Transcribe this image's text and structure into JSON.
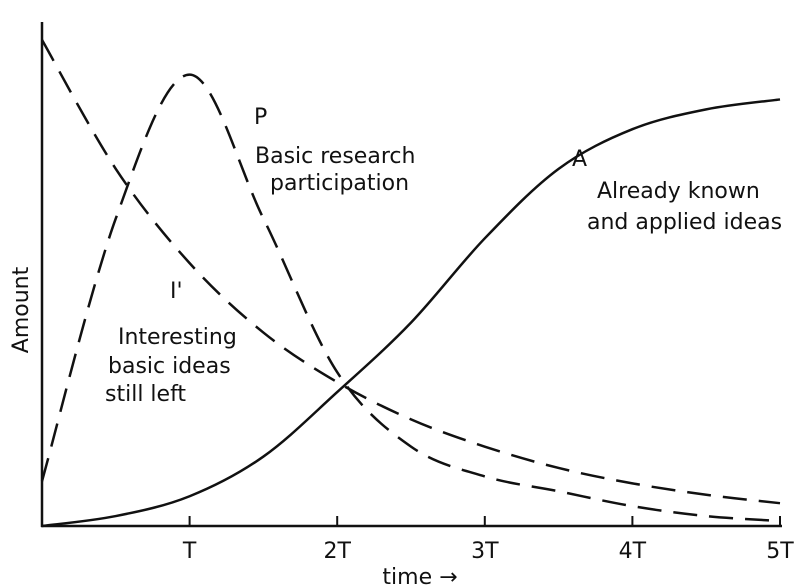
{
  "chart_data": {
    "type": "line",
    "x": [
      0,
      0.5,
      1,
      1.5,
      2,
      2.5,
      3,
      3.5,
      4,
      4.5,
      5
    ],
    "series": [
      {
        "name": "I'",
        "color": "#111111",
        "style": "dashed",
        "values": [
          98,
          72,
          53,
          39,
          29,
          21.5,
          16,
          11.7,
          8.6,
          6.3,
          4.6
        ]
      },
      {
        "name": "P",
        "color": "#111111",
        "style": "dashed",
        "values": [
          9,
          62,
          91,
          62,
          31,
          16,
          10,
          7,
          4,
          2,
          1
        ]
      },
      {
        "name": "A",
        "color": "#111111",
        "style": "solid",
        "values": [
          0,
          2,
          6,
          14,
          27,
          41,
          58,
          72,
          80,
          84,
          86
        ]
      }
    ],
    "xlim": [
      0,
      5
    ],
    "xticks": [
      {
        "value": 1,
        "label": "T"
      },
      {
        "value": 2,
        "label": "2T"
      },
      {
        "value": 3,
        "label": "3T"
      },
      {
        "value": 4,
        "label": "4T"
      },
      {
        "value": 5,
        "label": "5T"
      }
    ],
    "ylim": [
      0,
      100
    ],
    "xlabel": "time →",
    "ylabel": "Amount",
    "annotations": [
      "Basic research",
      "participation",
      "Already known",
      "and applied ideas",
      "Interesting",
      "basic ideas",
      "still left"
    ]
  }
}
